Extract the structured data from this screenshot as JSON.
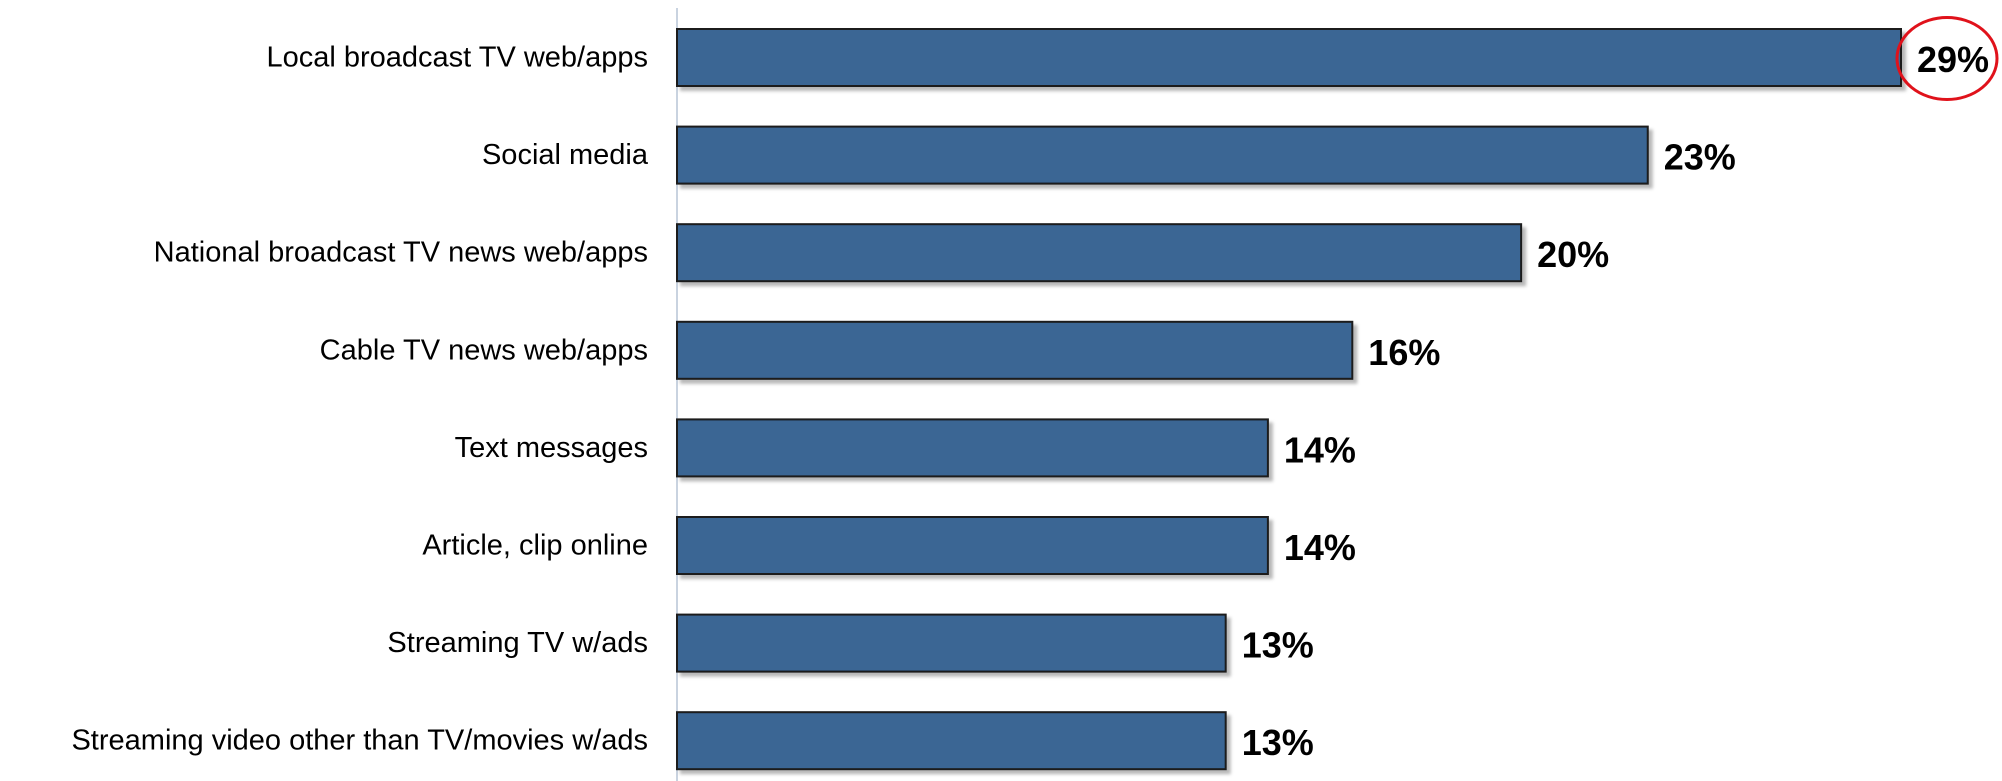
{
  "chart_data": {
    "type": "bar",
    "orientation": "horizontal",
    "categories": [
      "Local broadcast TV web/apps",
      "Social media",
      "National broadcast TV news web/apps",
      "Cable TV news web/apps",
      "Text messages",
      "Article, clip online",
      "Streaming TV w/ads",
      "Streaming video other than TV/movies w/ads"
    ],
    "values": [
      29,
      23,
      20,
      16,
      14,
      14,
      13,
      13
    ],
    "value_labels": [
      "29%",
      "23%",
      "20%",
      "16%",
      "14%",
      "14%",
      "13%",
      "13%"
    ],
    "value_unit": "%",
    "xlim": [
      0,
      29
    ],
    "highlight_index": 0,
    "grid": false,
    "legend": "none",
    "colors": {
      "bar_fill": "#3b6694",
      "bar_stroke": "#1a1a1a",
      "bar_shadow": "#bfbfbf",
      "axis": "#c9d3e0",
      "highlight_circle": "#e0121b",
      "text": "#000000"
    }
  }
}
